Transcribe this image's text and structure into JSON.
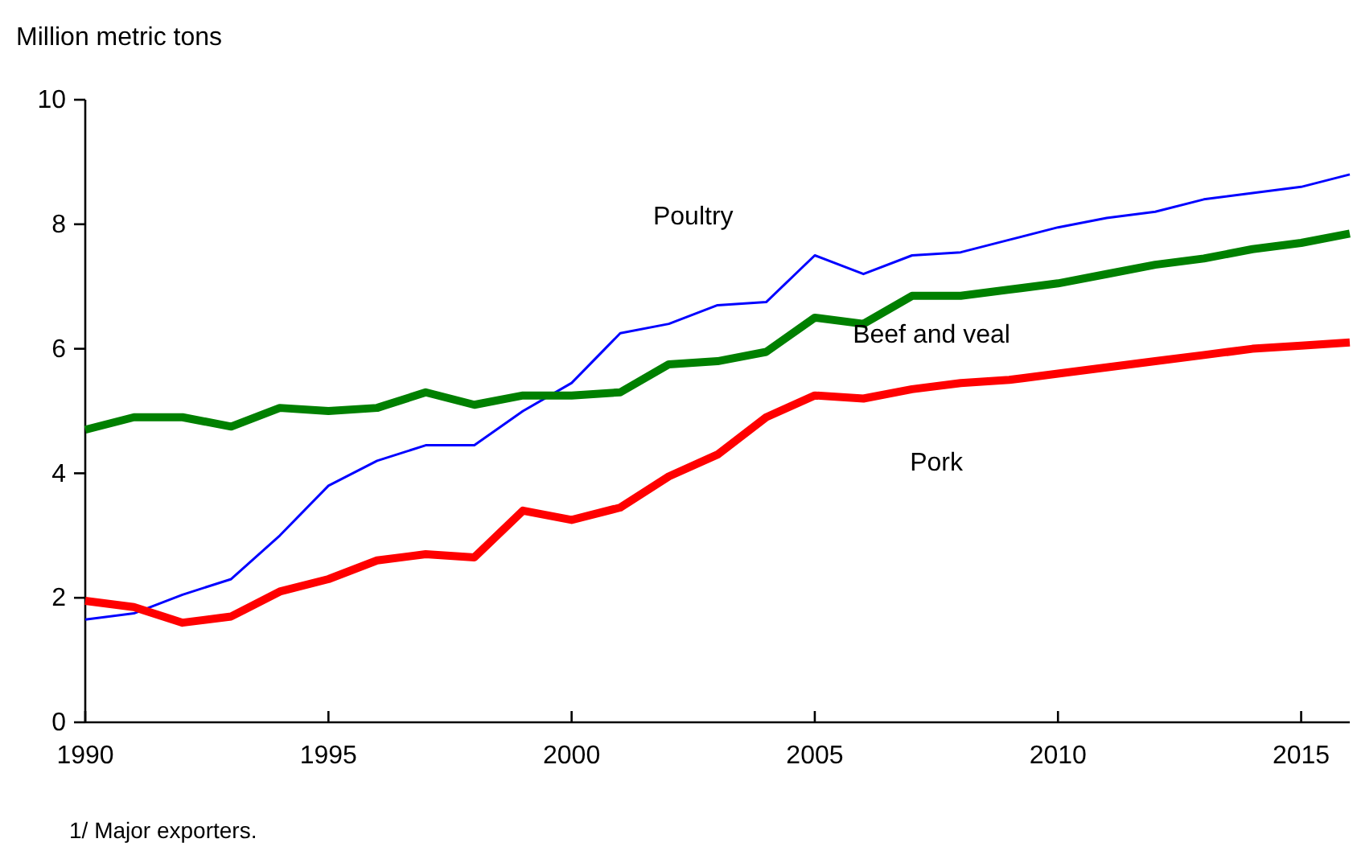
{
  "chart_data": {
    "type": "line",
    "ylabel": "Million metric tons",
    "x": [
      1990,
      1991,
      1992,
      1993,
      1994,
      1995,
      1996,
      1997,
      1998,
      1999,
      2000,
      2001,
      2002,
      2003,
      2004,
      2005,
      2006,
      2007,
      2008,
      2009,
      2010,
      2011,
      2012,
      2013,
      2014,
      2015,
      2016
    ],
    "xlim": [
      1990,
      2016
    ],
    "xticks": [
      1990,
      1995,
      2000,
      2005,
      2010,
      2015
    ],
    "ylim": [
      0,
      10
    ],
    "yticks": [
      0,
      2,
      4,
      6,
      8,
      10
    ],
    "grid": false,
    "legend": false,
    "marker": "none",
    "line_style": "solid",
    "series": [
      {
        "name": "Poultry",
        "color": "#0000ff",
        "values": [
          1.65,
          1.75,
          2.05,
          2.3,
          3.0,
          3.8,
          4.2,
          4.45,
          4.45,
          5.0,
          5.45,
          6.25,
          6.4,
          6.7,
          6.75,
          7.5,
          7.2,
          7.5,
          7.55,
          7.75,
          7.95,
          8.1,
          8.2,
          8.4,
          8.5,
          8.6,
          8.8
        ]
      },
      {
        "name": "Beef and veal",
        "color": "#008000",
        "values": [
          4.7,
          4.9,
          4.9,
          4.75,
          5.05,
          5.0,
          5.05,
          5.3,
          5.1,
          5.25,
          5.25,
          5.3,
          5.75,
          5.8,
          5.95,
          6.5,
          6.4,
          6.85,
          6.85,
          6.95,
          7.05,
          7.2,
          7.35,
          7.45,
          7.6,
          7.7,
          7.85
        ]
      },
      {
        "name": "Pork",
        "color": "#ff0000",
        "values": [
          1.95,
          1.85,
          1.6,
          1.7,
          2.1,
          2.3,
          2.6,
          2.7,
          2.65,
          3.4,
          3.25,
          3.45,
          3.95,
          4.3,
          4.9,
          5.25,
          5.2,
          5.35,
          5.45,
          5.5,
          5.6,
          5.7,
          5.8,
          5.9,
          6.0,
          6.05,
          6.1
        ]
      }
    ],
    "annotations": [
      "1/ Major exporters."
    ]
  }
}
